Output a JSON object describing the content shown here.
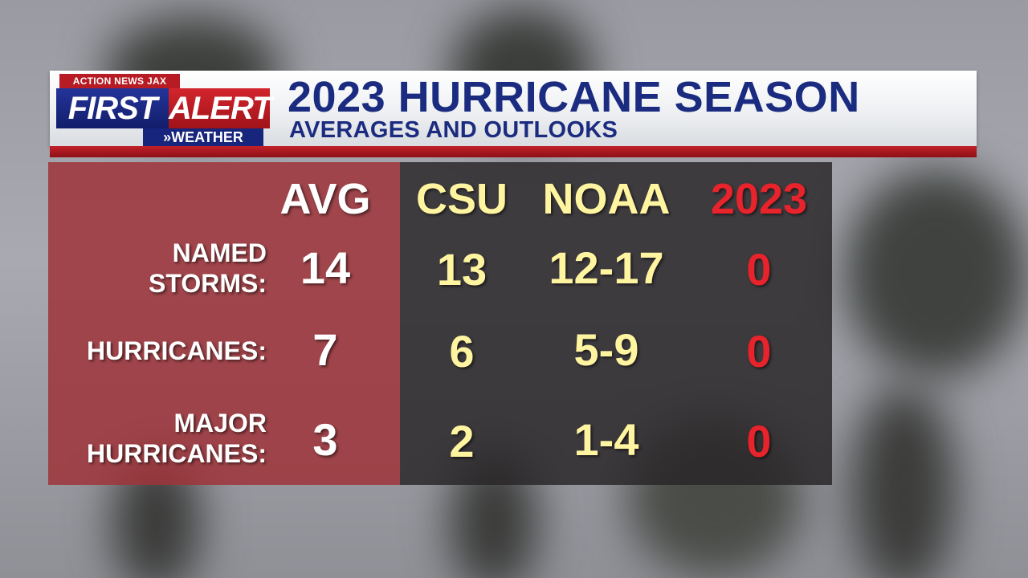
{
  "logo": {
    "top": "ACTION NEWS JAX",
    "first": "FIRST",
    "alert": "ALERT",
    "bottom": "»WEATHER"
  },
  "header": {
    "title": "2023 HURRICANE SEASON",
    "subtitle": "AVERAGES AND OUTLOOKS"
  },
  "colors": {
    "avg": "#ffffff",
    "csu": "#fff5a0",
    "noaa": "#fff5a0",
    "season": "#e8232b"
  },
  "table": {
    "columns": [
      "AVG",
      "CSU",
      "NOAA",
      "2023"
    ],
    "rows": [
      {
        "label_line1": "NAMED",
        "label_line2": "STORMS:",
        "values": [
          "14",
          "13",
          "12-17",
          "0"
        ]
      },
      {
        "label_line1": "HURRICANES:",
        "label_line2": "",
        "values": [
          "7",
          "6",
          "5-9",
          "0"
        ]
      },
      {
        "label_line1": "MAJOR",
        "label_line2": "HURRICANES:",
        "values": [
          "3",
          "2",
          "1-4",
          "0"
        ]
      }
    ]
  }
}
